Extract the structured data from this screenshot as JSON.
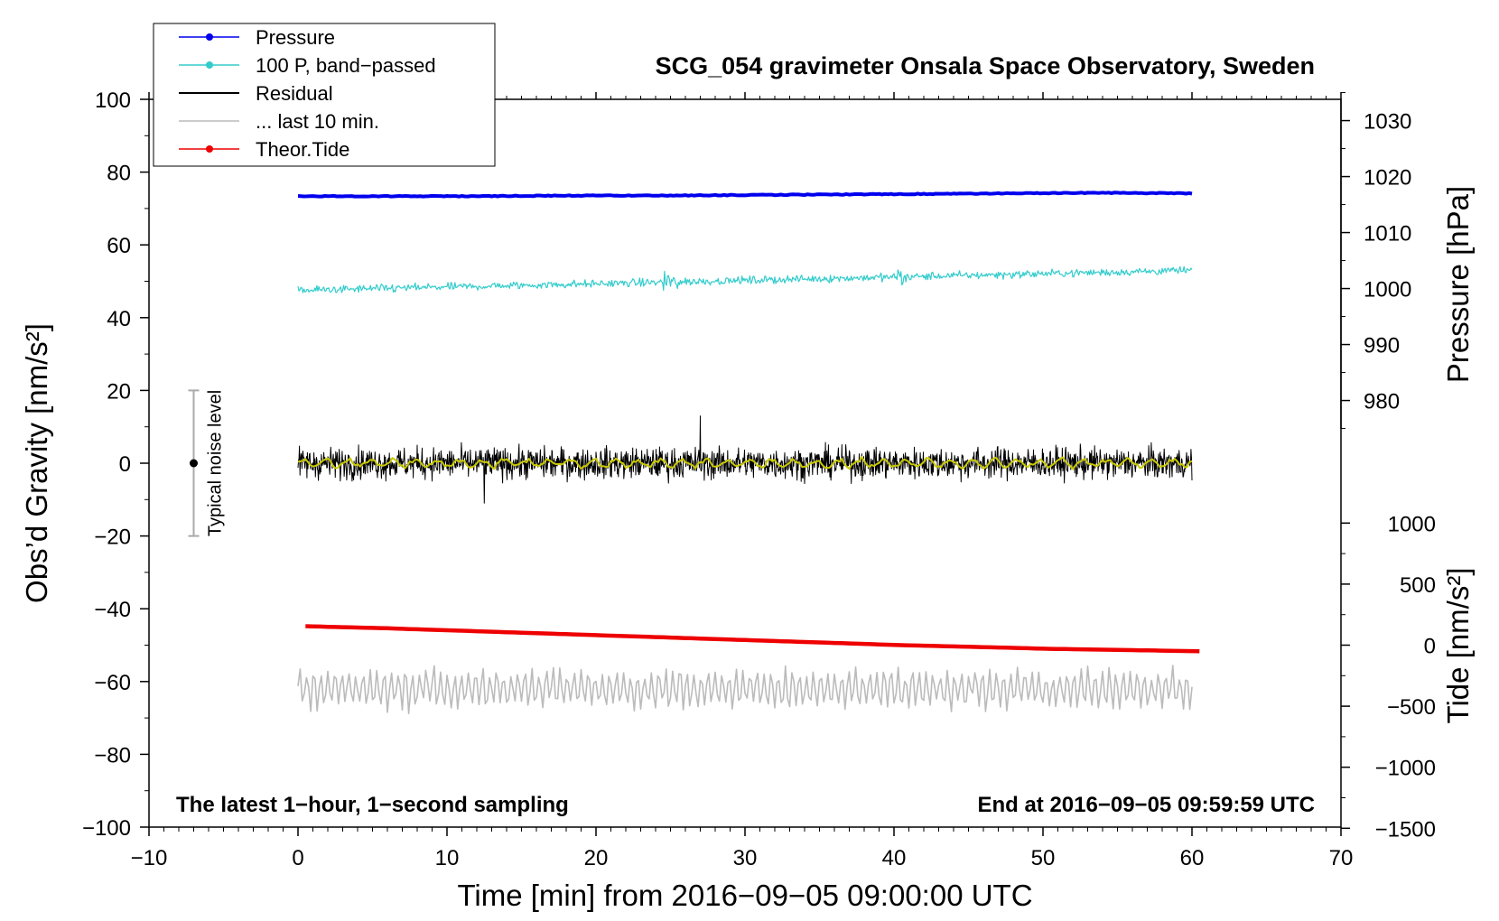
{
  "chart_data": {
    "type": "line",
    "title": "SCG_054 gravimeter Onsala Space Observatory, Sweden",
    "xlabel": "Time [min] from 2016−09−05 09:00:00 UTC",
    "ylabel_left": "Obs’d Gravity [nm/s²]",
    "ylabel_right_pressure": "Pressure [hPa]",
    "ylabel_right_tide": "Tide [nm/s²]",
    "xlim": [
      -10,
      70
    ],
    "ylim_left": [
      -100,
      100
    ],
    "pressure_axis_range": [
      970,
      1035
    ],
    "tide_axis_range": [
      -1500,
      1100
    ],
    "x_ticks": [
      "−10",
      "0",
      "10",
      "20",
      "30",
      "40",
      "50",
      "60",
      "70"
    ],
    "y_ticks_left": [
      "−100",
      "−80",
      "−60",
      "−40",
      "−20",
      "0",
      "20",
      "40",
      "60",
      "80",
      "100"
    ],
    "y_ticks_pressure": [
      "1030",
      "1020",
      "1010",
      "1000",
      "990",
      "980"
    ],
    "y_ticks_tide": [
      "1000",
      "500",
      "0",
      "−500",
      "−1000",
      "−1500"
    ],
    "annotation_left": "The latest 1−hour, 1−second sampling",
    "annotation_right": "End at 2016−09−05 09:59:59 UTC",
    "noise_label": "Typical noise level",
    "noise_bar": {
      "x": -7,
      "center": 0,
      "low": -20,
      "high": 20
    },
    "legend": [
      {
        "name": "Pressure",
        "color": "#0000ee",
        "marker": true
      },
      {
        "name": "100 P, band−passed",
        "color": "#33cccc",
        "marker": true
      },
      {
        "name": "Residual",
        "color": "#000000",
        "marker": false
      },
      {
        "name": "... last 10 min.",
        "color": "#bbbbbb",
        "marker": false
      },
      {
        "name": "Theor.Tide",
        "color": "#ee0000",
        "marker": true
      }
    ],
    "series": [
      {
        "name": "Pressure",
        "color": "#0000ee",
        "axis": "pressure",
        "x_range": [
          0,
          60
        ],
        "values_hpa": [
          1016.5,
          1016.5,
          1016.5,
          1016.6,
          1016.6,
          1016.7,
          1016.8,
          1016.9,
          1017.0,
          1017.1,
          1017.0
        ]
      },
      {
        "name": "100 P, band−passed",
        "color": "#33cccc",
        "axis": "left",
        "x_range": [
          0,
          60
        ],
        "mean_start": 47.5,
        "mean_end": 53,
        "amplitude": 1.5
      },
      {
        "name": "Residual",
        "color": "#000000",
        "axis": "left",
        "x_range": [
          0,
          60
        ],
        "mean": 0,
        "amplitude": 4,
        "extremes": [
          13,
          -11
        ]
      },
      {
        "name": "Residual smoothed",
        "color": "#c8c800",
        "axis": "left",
        "x_range": [
          0,
          60
        ],
        "mean": 0,
        "amplitude": 1
      },
      {
        "name": "... last 10 min.",
        "color": "#bbbbbb",
        "axis": "left",
        "x_range": [
          0,
          60
        ],
        "mean": -62,
        "amplitude": 5
      },
      {
        "name": "Theor.Tide",
        "color": "#ee0000",
        "axis": "tide",
        "x_range": [
          0.5,
          60.5
        ],
        "values": [
          155,
          140,
          120,
          100,
          80,
          60,
          40,
          20,
          0,
          -15,
          -30,
          -40,
          -50
        ]
      }
    ]
  }
}
